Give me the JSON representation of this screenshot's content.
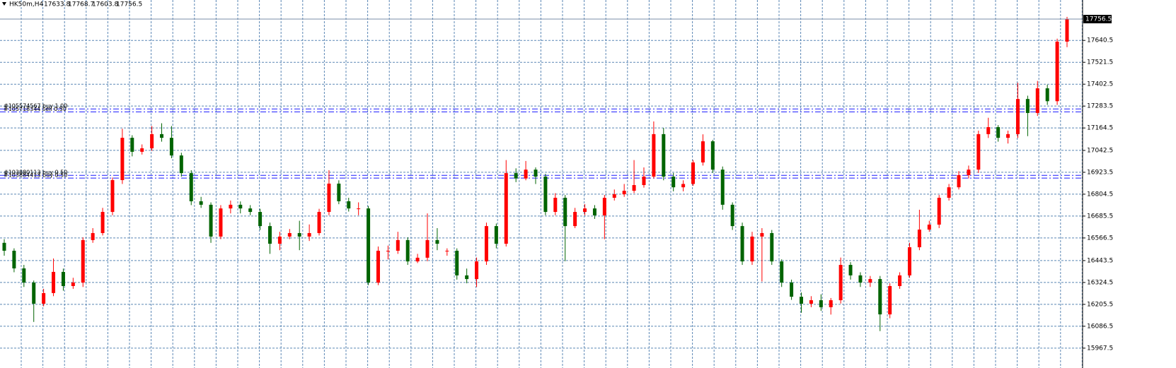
{
  "chart_data": {
    "type": "candlestick",
    "symbol": "HK50m,H4",
    "up_color": "#ff0000",
    "down_color": "#006400",
    "grid_color": "#5b87b5",
    "order_color": "#1a1aff",
    "ylim": [
      15859.5,
      17860.2
    ],
    "yticks": [
      {
        "value": 17640.5,
        "label": "17640.5"
      },
      {
        "value": 17521.5,
        "label": "17521.5"
      },
      {
        "value": 17402.5,
        "label": "17402.5"
      },
      {
        "value": 17283.5,
        "label": "17283.5"
      },
      {
        "value": 17164.5,
        "label": "17164.5"
      },
      {
        "value": 17042.5,
        "label": "17042.5"
      },
      {
        "value": 16923.5,
        "label": "16923.5"
      },
      {
        "value": 16804.5,
        "label": "16804.5"
      },
      {
        "value": 16685.5,
        "label": "16685.5"
      },
      {
        "value": 16566.5,
        "label": "16566.5"
      },
      {
        "value": 16443.5,
        "label": "16443.5"
      },
      {
        "value": 16324.5,
        "label": "16324.5"
      },
      {
        "value": 16205.5,
        "label": "16205.5"
      },
      {
        "value": 16086.5,
        "label": "16086.5"
      },
      {
        "value": 15967.5,
        "label": "15967.5"
      }
    ],
    "grid": true,
    "orders": [
      {
        "label": "#105574567 buy 1.00",
        "price": 17268
      },
      {
        "label": "#105718344 sell 0.50",
        "price": 17252
      },
      {
        "label": "#103880113 buy 0.50",
        "price": 16907
      },
      {
        "label": "#103884413 buy 0.50",
        "price": 16892
      }
    ],
    "open": [
      16540,
      16497,
      16401,
      16324,
      16209,
      16267,
      16382,
      16305,
      16324,
      16555,
      16593,
      16708,
      16881,
      17111,
      17035,
      17054,
      17131,
      17111,
      17015,
      16919,
      16766,
      16747,
      16574,
      16727,
      16747,
      16727,
      16708,
      16631,
      16535,
      16574,
      16593,
      16574,
      16593,
      16708,
      16862,
      16766,
      16727,
      16727,
      16324,
      16497,
      16497,
      16555,
      16439,
      16459,
      16555,
      16497,
      16497,
      16363,
      16343,
      16439,
      16631,
      16535,
      16919,
      16890,
      16938,
      16900,
      16708,
      16785,
      16631,
      16708,
      16727,
      16689,
      16785,
      16804,
      16823,
      16854,
      16900,
      17131,
      16900,
      16842,
      16860,
      16977,
      17092,
      16938,
      16747,
      16631,
      16439,
      16574,
      16593,
      16439,
      16324,
      16247,
      16209,
      16228,
      16190,
      16228,
      16420,
      16363,
      16324,
      16343,
      16151,
      16305,
      16363,
      16516,
      16612,
      16639,
      16785,
      16842,
      16908,
      16938,
      17131,
      17169,
      17111,
      17131,
      17322,
      17246,
      17380,
      17310,
      17633.8
    ],
    "high": [
      16560,
      16510,
      16420,
      16335,
      16290,
      16455,
      16400,
      16350,
      16570,
      16620,
      16730,
      16895,
      17160,
      17125,
      17075,
      17175,
      17190,
      17175,
      17030,
      16935,
      16790,
      16760,
      16745,
      16770,
      16765,
      16745,
      16725,
      16650,
      16600,
      16615,
      16660,
      16640,
      16725,
      16935,
      16880,
      16785,
      16760,
      16740,
      16520,
      16525,
      16600,
      16570,
      16480,
      16700,
      16620,
      16510,
      16510,
      16400,
      16460,
      16650,
      16645,
      16990,
      16945,
      16985,
      16950,
      16915,
      16810,
      16800,
      16730,
      16750,
      16745,
      16800,
      16830,
      16860,
      16990,
      16950,
      17200,
      17165,
      16920,
      16880,
      16990,
      17130,
      17100,
      16955,
      16760,
      16650,
      16600,
      16620,
      16610,
      16450,
      16340,
      16270,
      16250,
      16260,
      16240,
      16460,
      16435,
      16380,
      16360,
      16360,
      16320,
      16380,
      16540,
      16720,
      16660,
      16800,
      16860,
      16930,
      16960,
      17150,
      17220,
      17180,
      17150,
      17410,
      17340,
      17420,
      17400,
      17650,
      17768.7
    ],
    "low": [
      16470,
      16380,
      16300,
      16110,
      16195,
      16250,
      16280,
      16290,
      16300,
      16540,
      16580,
      16690,
      16860,
      17010,
      17020,
      17040,
      17090,
      17000,
      16900,
      16745,
      16730,
      16540,
      16560,
      16700,
      16700,
      16690,
      16610,
      16480,
      16500,
      16560,
      16500,
      16550,
      16580,
      16690,
      16750,
      16710,
      16690,
      16310,
      16310,
      16450,
      16480,
      16420,
      16430,
      16440,
      16500,
      16470,
      16340,
      16320,
      16300,
      16420,
      16510,
      16520,
      16870,
      16880,
      16860,
      16690,
      16690,
      16440,
      16620,
      16690,
      16670,
      16560,
      16770,
      16790,
      16810,
      16840,
      16890,
      16880,
      16820,
      16820,
      16850,
      16960,
      16920,
      16720,
      16610,
      16420,
      16420,
      16330,
      16420,
      16300,
      16230,
      16160,
      16190,
      16170,
      16150,
      16210,
      16340,
      16300,
      16300,
      16060,
      16130,
      16290,
      16350,
      16500,
      16600,
      16620,
      16770,
      16830,
      16890,
      16920,
      17110,
      17090,
      17080,
      17110,
      17120,
      17230,
      17290,
      17290,
      17603.8
    ],
    "close": [
      16497,
      16401,
      16324,
      16209,
      16267,
      16382,
      16305,
      16324,
      16555,
      16593,
      16708,
      16881,
      17111,
      17035,
      17054,
      17131,
      17111,
      17015,
      16919,
      16766,
      16747,
      16574,
      16727,
      16747,
      16727,
      16708,
      16631,
      16535,
      16574,
      16593,
      16574,
      16593,
      16708,
      16862,
      16766,
      16727,
      16727,
      16324,
      16497,
      16497,
      16555,
      16439,
      16459,
      16555,
      16535,
      16497,
      16363,
      16343,
      16439,
      16631,
      16535,
      16919,
      16890,
      16938,
      16900,
      16708,
      16785,
      16631,
      16708,
      16727,
      16689,
      16785,
      16804,
      16823,
      16854,
      16900,
      17131,
      16900,
      16842,
      16860,
      16977,
      17092,
      16938,
      16747,
      16631,
      16439,
      16574,
      16593,
      16439,
      16324,
      16247,
      16209,
      16228,
      16190,
      16228,
      16420,
      16363,
      16324,
      16343,
      16151,
      16305,
      16363,
      16516,
      16612,
      16639,
      16785,
      16842,
      16908,
      16938,
      17131,
      17169,
      17111,
      17131,
      17322,
      17246,
      17380,
      17310,
      17633.8,
      17756.5
    ]
  }
}
